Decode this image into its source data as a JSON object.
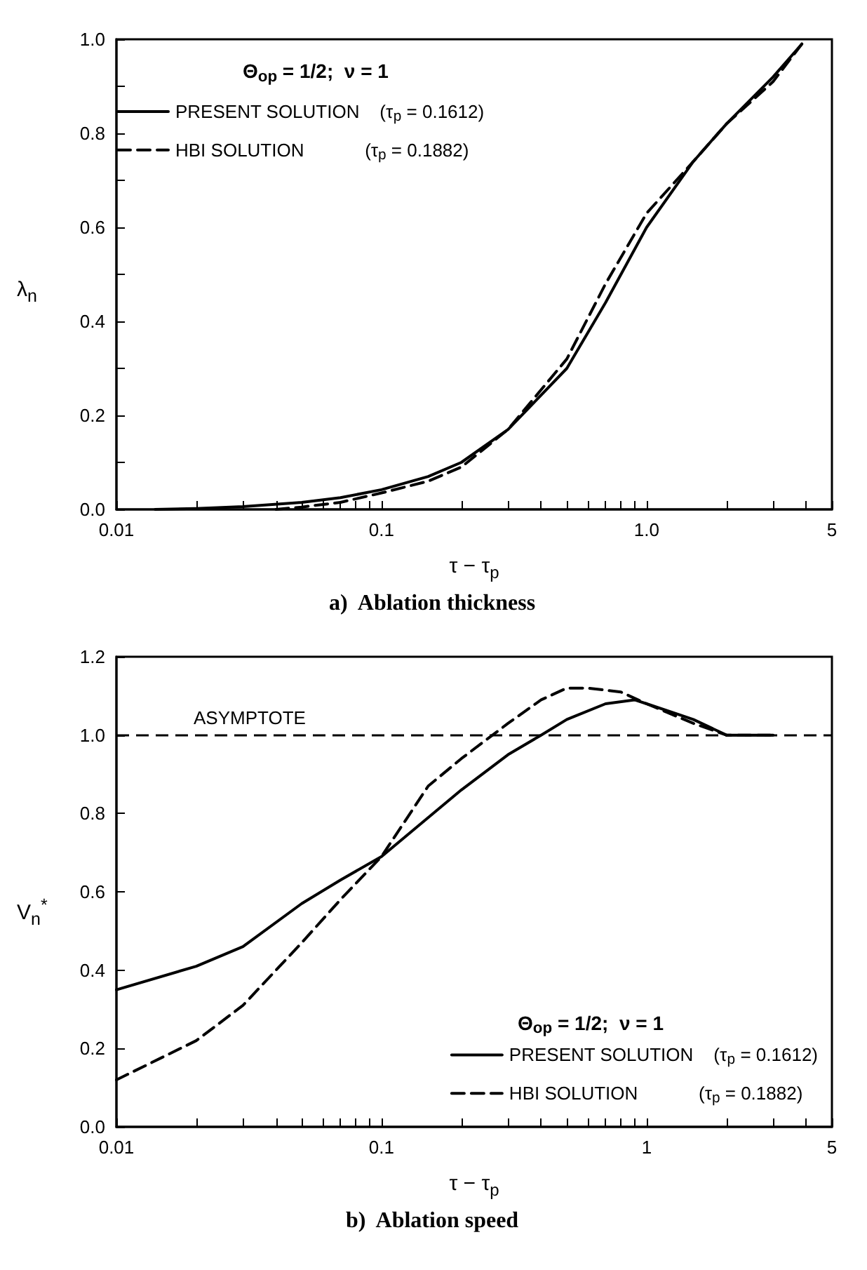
{
  "chart_data": [
    {
      "type": "line",
      "title": "a)  Ablation thickness",
      "xlabel": "τ − τ$_{p}$",
      "ylabel": "λ$_{n}$",
      "legend_title": "Θ$_{op}$ = 1/2;  ν = 1",
      "log": "x",
      "legend": "top left",
      "marker": "none",
      "xlim": [
        0.01,
        5
      ],
      "ylim": [
        0,
        1
      ],
      "xticks": [
        {
          "value": 0.01,
          "label": "0.01"
        },
        {
          "value": 0.02,
          "label": null
        },
        {
          "value": 0.03,
          "label": null
        },
        {
          "value": 0.04,
          "label": null
        },
        {
          "value": 0.05,
          "label": null
        },
        {
          "value": 0.06,
          "label": null
        },
        {
          "value": 0.07,
          "label": null
        },
        {
          "value": 0.08,
          "label": null
        },
        {
          "value": 0.09,
          "label": null
        },
        0.1,
        {
          "value": 0.2,
          "label": null
        },
        {
          "value": 0.3,
          "label": null
        },
        {
          "value": 0.4,
          "label": null
        },
        {
          "value": 0.5,
          "label": null
        },
        {
          "value": 0.6,
          "label": null
        },
        {
          "value": 0.7,
          "label": null
        },
        {
          "value": 0.8,
          "label": null
        },
        {
          "value": 0.9,
          "label": null
        },
        {
          "value": 1,
          "label": "1.0"
        },
        {
          "value": 2,
          "label": null
        },
        {
          "value": 3,
          "label": null
        },
        {
          "value": 4,
          "label": null
        },
        5
      ],
      "yticks": [
        {
          "value": 0,
          "label": "0.0"
        },
        {
          "value": 0.1,
          "label": null
        },
        0.2,
        {
          "value": 0.3,
          "label": null
        },
        0.4,
        {
          "value": 0.5,
          "label": null
        },
        0.6,
        {
          "value": 0.7,
          "label": null
        },
        0.8,
        {
          "value": 0.9,
          "label": null
        },
        {
          "value": 1,
          "label": "1.0"
        }
      ],
      "series": [
        {
          "name": "PRESENT SOLUTION    (τ$_{p}$ = 0.1612)",
          "color": "#000000",
          "line_style": "solid",
          "x": [
            0.014,
            0.02,
            0.03,
            0.05,
            0.07,
            0.1,
            0.15,
            0.2,
            0.3,
            0.5,
            0.7,
            1,
            1.5,
            2,
            3,
            3.85
          ],
          "values": [
            0,
            0.002,
            0.006,
            0.015,
            0.025,
            0.042,
            0.07,
            0.1,
            0.17,
            0.3,
            0.44,
            0.6,
            0.74,
            0.82,
            0.92,
            0.99
          ]
        },
        {
          "name": "HBI SOLUTION            (τ$_{p}$ = 0.1882)",
          "color": "#000000",
          "line_style": "dashed",
          "x": [
            0.04,
            0.05,
            0.07,
            0.1,
            0.15,
            0.2,
            0.3,
            0.5,
            0.7,
            1,
            1.5,
            2,
            3,
            3.85
          ],
          "values": [
            0,
            0.005,
            0.015,
            0.035,
            0.06,
            0.09,
            0.17,
            0.32,
            0.48,
            0.63,
            0.74,
            0.82,
            0.91,
            0.99
          ]
        }
      ]
    },
    {
      "type": "line",
      "title": "b)  Ablation speed",
      "xlabel": "τ − τ$_{p}$",
      "ylabel": "V$_{n}$$^{*}$",
      "legend_title": "Θ$_{op}$ = 1/2;  ν = 1",
      "log": "x",
      "legend": "bottom right",
      "marker": "none",
      "xlim": [
        0.01,
        5
      ],
      "ylim": [
        0,
        1.2
      ],
      "xticks": [
        {
          "value": 0.01,
          "label": "0.01"
        },
        {
          "value": 0.02,
          "label": null
        },
        {
          "value": 0.03,
          "label": null
        },
        {
          "value": 0.04,
          "label": null
        },
        {
          "value": 0.05,
          "label": null
        },
        {
          "value": 0.06,
          "label": null
        },
        {
          "value": 0.07,
          "label": null
        },
        {
          "value": 0.08,
          "label": null
        },
        {
          "value": 0.09,
          "label": null
        },
        0.1,
        {
          "value": 0.2,
          "label": null
        },
        {
          "value": 0.3,
          "label": null
        },
        {
          "value": 0.4,
          "label": null
        },
        {
          "value": 0.5,
          "label": null
        },
        {
          "value": 0.6,
          "label": null
        },
        {
          "value": 0.7,
          "label": null
        },
        {
          "value": 0.8,
          "label": null
        },
        {
          "value": 0.9,
          "label": null
        },
        1,
        {
          "value": 2,
          "label": null
        },
        {
          "value": 3,
          "label": null
        },
        {
          "value": 4,
          "label": null
        },
        5
      ],
      "yticks": [
        {
          "value": 0,
          "label": "0.0"
        },
        0.2,
        0.4,
        0.6,
        0.8,
        {
          "value": 1,
          "label": "1.0"
        },
        1.2
      ],
      "ref_lines": [
        {
          "axis": "y",
          "value": 1,
          "label": "ASYMPTOTE",
          "color": "#000000",
          "line_style": "dashed"
        }
      ],
      "series": [
        {
          "name": "PRESENT SOLUTION    (τ$_{p}$ = 0.1612)",
          "color": "#000000",
          "line_style": "solid",
          "x": [
            0.01,
            0.02,
            0.03,
            0.05,
            0.07,
            0.1,
            0.2,
            0.3,
            0.4,
            0.5,
            0.7,
            0.9,
            1,
            1.5,
            2,
            3
          ],
          "values": [
            0.35,
            0.41,
            0.46,
            0.57,
            0.63,
            0.69,
            0.86,
            0.95,
            1.0,
            1.04,
            1.08,
            1.09,
            1.08,
            1.04,
            1.0,
            1.0
          ]
        },
        {
          "name": "HBI SOLUTION            (τ$_{p}$ = 0.1882)",
          "color": "#000000",
          "line_style": "dashed",
          "x": [
            0.01,
            0.02,
            0.03,
            0.05,
            0.07,
            0.1,
            0.15,
            0.2,
            0.3,
            0.4,
            0.5,
            0.6,
            0.8,
            1,
            1.5,
            2,
            3
          ],
          "values": [
            0.12,
            0.22,
            0.31,
            0.47,
            0.58,
            0.69,
            0.87,
            0.94,
            1.03,
            1.09,
            1.12,
            1.12,
            1.11,
            1.08,
            1.03,
            1.0,
            1.0
          ]
        }
      ]
    }
  ]
}
